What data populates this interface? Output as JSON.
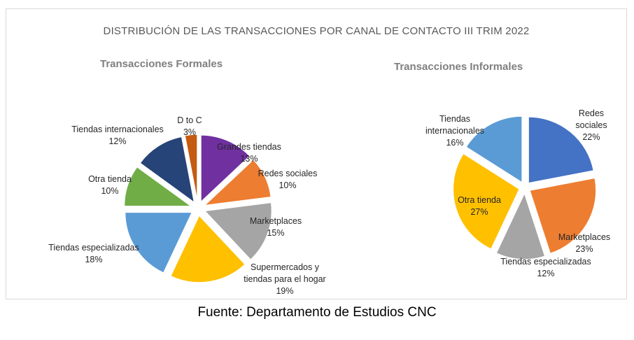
{
  "title": "DISTRIBUCIÓN DE LAS TRANSACCIONES  POR CANAL DE CONTACTO III TRIM 2022",
  "source": "Fuente: Departamento de Estudios CNC",
  "chart_data": [
    {
      "type": "pie",
      "title": "Transacciones Formales",
      "slices": [
        {
          "name": "Grandes tiendas",
          "value": 13,
          "label": "13%",
          "color": "#7030a0"
        },
        {
          "name": "Redes sociales",
          "value": 10,
          "label": "10%",
          "color": "#ed7d31"
        },
        {
          "name": "Marketplaces",
          "value": 15,
          "label": "15%",
          "color": "#a5a5a5"
        },
        {
          "name": "Supermercados y tiendas para el hogar",
          "value": 19,
          "label": "19%",
          "color": "#ffc000"
        },
        {
          "name": "Tiendas especializadas",
          "value": 18,
          "label": "18%",
          "color": "#5b9bd5"
        },
        {
          "name": "Otra tienda",
          "value": 10,
          "label": "10%",
          "color": "#70ad47"
        },
        {
          "name": "Tiendas internacionales",
          "value": 12,
          "label": "12%",
          "color": "#264478"
        },
        {
          "name": "D to C",
          "value": 3,
          "label": "3%",
          "color": "#c55a11"
        }
      ]
    },
    {
      "type": "pie",
      "title": "Transacciones Informales",
      "slices": [
        {
          "name": "Redes sociales",
          "value": 22,
          "label": "22%",
          "color": "#4472c4"
        },
        {
          "name": "Marketplaces",
          "value": 23,
          "label": "23%",
          "color": "#ed7d31"
        },
        {
          "name": "Tiendas especializadas",
          "value": 12,
          "label": "12%",
          "color": "#a5a5a5"
        },
        {
          "name": "Otra tienda",
          "value": 27,
          "label": "27%",
          "color": "#ffc000"
        },
        {
          "name": "Tiendas internacionales",
          "value": 16,
          "label": "16%",
          "color": "#5b9bd5"
        }
      ]
    }
  ]
}
